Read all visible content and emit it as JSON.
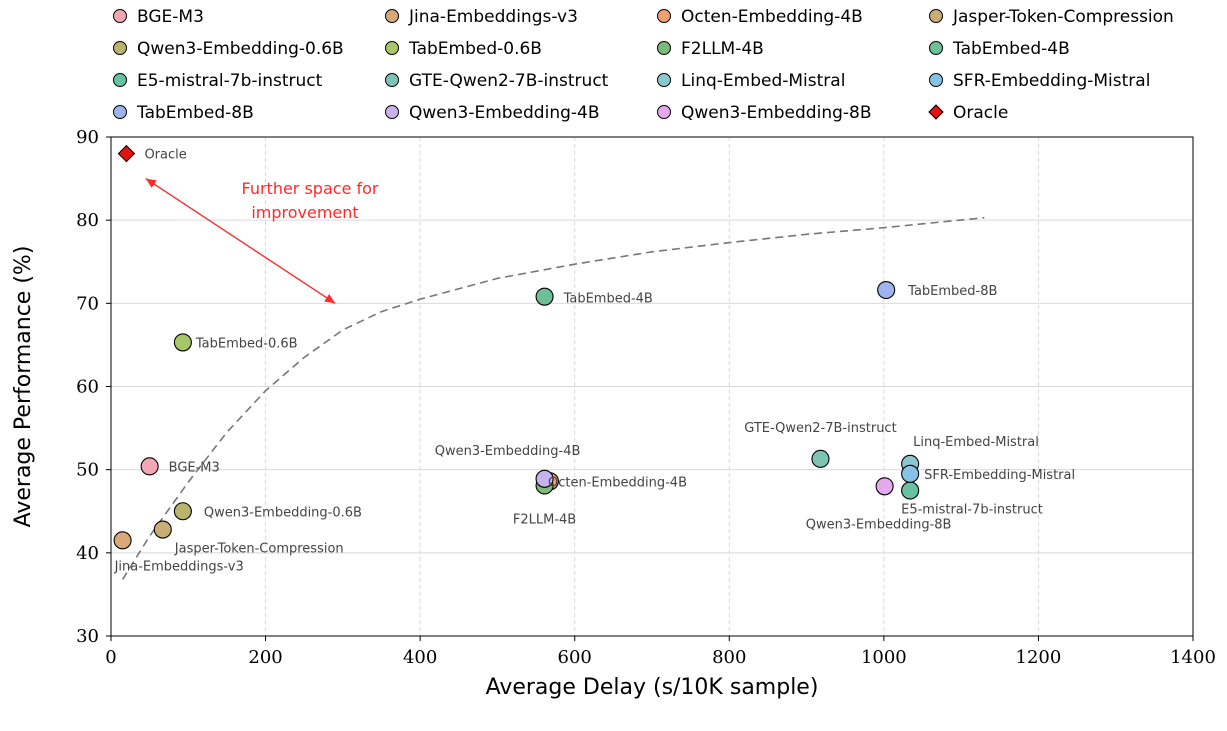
{
  "chart_data": {
    "type": "scatter",
    "xlabel": "Average Delay (s/10K sample)",
    "ylabel": "Average Performance (%)",
    "xlim": [
      0,
      1400
    ],
    "ylim": [
      30,
      90
    ],
    "xticks": [
      "0",
      "200",
      "400",
      "600",
      "800",
      "1000",
      "1200",
      "1400"
    ],
    "yticks": [
      "30",
      "40",
      "50",
      "60",
      "70",
      "80",
      "90"
    ],
    "grid": true,
    "legend_position": "top",
    "series": [
      {
        "name": "BGE-M3",
        "x": 50,
        "y": 50.4,
        "color": "#f4a6b5",
        "marker": "circle"
      },
      {
        "name": "Jina-Embeddings-v3",
        "x": 15,
        "y": 41.5,
        "color": "#d9a878",
        "marker": "circle"
      },
      {
        "name": "Octen-Embedding-4B",
        "x": 568,
        "y": 48.6,
        "color": "#f0a070",
        "marker": "circle"
      },
      {
        "name": "Jasper-Token-Compression",
        "x": 67,
        "y": 42.8,
        "color": "#c8ad77",
        "marker": "circle"
      },
      {
        "name": "Qwen3-Embedding-0.6B",
        "x": 93,
        "y": 45.0,
        "color": "#b8b46d",
        "marker": "circle"
      },
      {
        "name": "TabEmbed-0.6B",
        "x": 93,
        "y": 65.3,
        "color": "#a6c66a",
        "marker": "circle"
      },
      {
        "name": "F2LLM-4B",
        "x": 561,
        "y": 48.1,
        "color": "#7dba78",
        "marker": "circle"
      },
      {
        "name": "TabEmbed-4B",
        "x": 561,
        "y": 70.8,
        "color": "#6dbf95",
        "marker": "circle"
      },
      {
        "name": "E5-mistral-7b-instruct",
        "x": 1034,
        "y": 47.5,
        "color": "#66c2a0",
        "marker": "circle"
      },
      {
        "name": "GTE-Qwen2-7B-instruct",
        "x": 918,
        "y": 51.3,
        "color": "#7cc4b3",
        "marker": "circle"
      },
      {
        "name": "Linq-Embed-Mistral",
        "x": 1034,
        "y": 50.7,
        "color": "#8cc6cf",
        "marker": "circle"
      },
      {
        "name": "SFR-Embedding-Mistral",
        "x": 1034,
        "y": 49.5,
        "color": "#86c2e6",
        "marker": "circle"
      },
      {
        "name": "TabEmbed-8B",
        "x": 1003,
        "y": 71.6,
        "color": "#9db4ef",
        "marker": "circle"
      },
      {
        "name": "Qwen3-Embedding-4B",
        "x": 561,
        "y": 48.9,
        "color": "#c6b3ee",
        "marker": "circle"
      },
      {
        "name": "Qwen3-Embedding-8B",
        "x": 1001,
        "y": 48.0,
        "color": "#e3a8ee",
        "marker": "circle"
      },
      {
        "name": "Oracle",
        "x": 20,
        "y": 88.0,
        "color": "#e21313",
        "marker": "diamond"
      }
    ],
    "annotations": [
      {
        "text": "Further space for",
        "text2": "improvement",
        "color": "#ff2a2a",
        "arrow_from": [
          290,
          70.0
        ],
        "arrow_to": [
          45,
          85.0
        ]
      }
    ],
    "trend_curve": {
      "style": "dashed",
      "color": "#777777",
      "x": [
        15,
        50,
        100,
        150,
        200,
        250,
        300,
        350,
        400,
        500,
        600,
        700,
        800,
        900,
        1000,
        1130
      ],
      "y": [
        36.8,
        42.0,
        48.5,
        54.5,
        59.5,
        63.5,
        66.8,
        69.0,
        70.5,
        73.0,
        74.7,
        76.2,
        77.3,
        78.3,
        79.1,
        80.3
      ]
    }
  }
}
